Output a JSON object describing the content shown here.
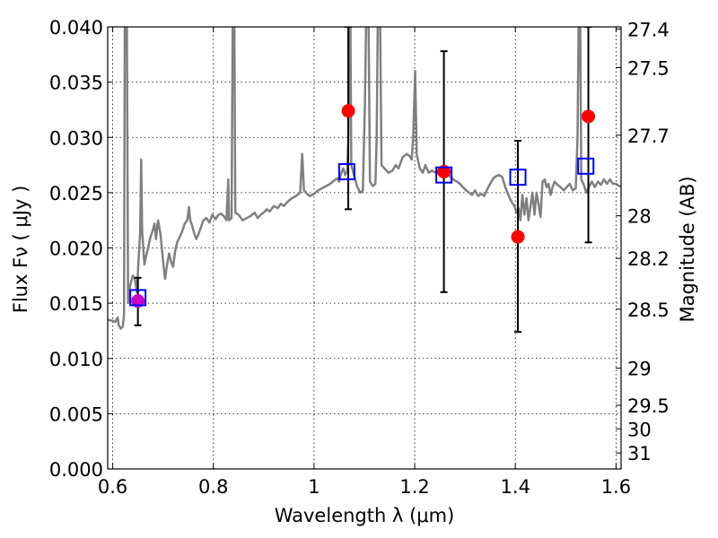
{
  "chart_data": {
    "type": "scatter",
    "xlabel": "Wavelength  λ (μm)",
    "ylabel": "Flux  Fν  ( μJy )",
    "y2label": "Magnitude (AB)",
    "xlim": [
      0.59,
      1.61
    ],
    "ylim": [
      0.0,
      0.04
    ],
    "grid": true,
    "x_ticks": [
      "0.6",
      "0.8",
      "1",
      "1.2",
      "1.4",
      "1.6"
    ],
    "y_ticks": [
      "0.000",
      "0.005",
      "0.010",
      "0.015",
      "0.020",
      "0.025",
      "0.030",
      "0.035",
      "0.040"
    ],
    "y2_ticks": [
      "27.4",
      "27.5",
      "27.7",
      "28",
      "28.2",
      "28.5",
      "29",
      "29.5",
      "30",
      "31"
    ],
    "series": [
      {
        "kind": "spectrum",
        "color": "#808080",
        "points": [
          [
            0.59,
            0.0135
          ],
          [
            0.6,
            0.0134
          ],
          [
            0.605,
            0.0133
          ],
          [
            0.61,
            0.0137
          ],
          [
            0.612,
            0.013
          ],
          [
            0.616,
            0.0127
          ],
          [
            0.62,
            0.0129
          ],
          [
            0.6225,
            0.014
          ],
          [
            0.624,
            0.042
          ],
          [
            0.628,
            0.042
          ],
          [
            0.6305,
            0.015
          ],
          [
            0.634,
            0.0165
          ],
          [
            0.64,
            0.0175
          ],
          [
            0.644,
            0.0172
          ],
          [
            0.648,
            0.016
          ],
          [
            0.652,
            0.0195
          ],
          [
            0.6545,
            0.0215
          ],
          [
            0.6565,
            0.028
          ],
          [
            0.6585,
            0.0215
          ],
          [
            0.663,
            0.0185
          ],
          [
            0.666,
            0.0192
          ],
          [
            0.67,
            0.02
          ],
          [
            0.675,
            0.021
          ],
          [
            0.679,
            0.0215
          ],
          [
            0.683,
            0.0222
          ],
          [
            0.686,
            0.0208
          ],
          [
            0.69,
            0.0225
          ],
          [
            0.695,
            0.0212
          ],
          [
            0.7,
            0.0188
          ],
          [
            0.704,
            0.0172
          ],
          [
            0.708,
            0.0185
          ],
          [
            0.712,
            0.0195
          ],
          [
            0.716,
            0.0187
          ],
          [
            0.72,
            0.0183
          ],
          [
            0.724,
            0.0197
          ],
          [
            0.728,
            0.0205
          ],
          [
            0.733,
            0.021
          ],
          [
            0.738,
            0.0215
          ],
          [
            0.743,
            0.0222
          ],
          [
            0.748,
            0.0225
          ],
          [
            0.7515,
            0.0237
          ],
          [
            0.754,
            0.0225
          ],
          [
            0.758,
            0.022
          ],
          [
            0.762,
            0.0213
          ],
          [
            0.766,
            0.0208
          ],
          [
            0.77,
            0.0212
          ],
          [
            0.775,
            0.0218
          ],
          [
            0.78,
            0.0225
          ],
          [
            0.786,
            0.0227
          ],
          [
            0.792,
            0.0223
          ],
          [
            0.798,
            0.023
          ],
          [
            0.804,
            0.0226
          ],
          [
            0.81,
            0.023
          ],
          [
            0.816,
            0.0231
          ],
          [
            0.822,
            0.0228
          ],
          [
            0.826,
            0.0225
          ],
          [
            0.8295,
            0.0262
          ],
          [
            0.831,
            0.0225
          ],
          [
            0.836,
            0.0227
          ],
          [
            0.8385,
            0.042
          ],
          [
            0.8415,
            0.042
          ],
          [
            0.8435,
            0.0232
          ],
          [
            0.85,
            0.023
          ],
          [
            0.858,
            0.0225
          ],
          [
            0.866,
            0.0227
          ],
          [
            0.874,
            0.0229
          ],
          [
            0.882,
            0.0232
          ],
          [
            0.888,
            0.0227
          ],
          [
            0.894,
            0.023
          ],
          [
            0.9,
            0.0232
          ],
          [
            0.906,
            0.0235
          ],
          [
            0.912,
            0.0233
          ],
          [
            0.92,
            0.0238
          ],
          [
            0.928,
            0.0236
          ],
          [
            0.934,
            0.024
          ],
          [
            0.94,
            0.0238
          ],
          [
            0.948,
            0.0242
          ],
          [
            0.956,
            0.0245
          ],
          [
            0.964,
            0.0247
          ],
          [
            0.9725,
            0.025
          ],
          [
            0.9765,
            0.0285
          ],
          [
            0.98,
            0.0252
          ],
          [
            0.986,
            0.0249
          ],
          [
            0.992,
            0.0247
          ],
          [
            1.0,
            0.0249
          ],
          [
            1.008,
            0.0252
          ],
          [
            1.016,
            0.0254
          ],
          [
            1.024,
            0.0256
          ],
          [
            1.032,
            0.0258
          ],
          [
            1.04,
            0.0261
          ],
          [
            1.046,
            0.0263
          ],
          [
            1.05,
            0.026
          ],
          [
            1.054,
            0.0268
          ],
          [
            1.058,
            0.0272
          ],
          [
            1.062,
            0.0266
          ],
          [
            1.066,
            0.027
          ],
          [
            1.068,
            0.03
          ],
          [
            1.07,
            0.042
          ],
          [
            1.072,
            0.042
          ],
          [
            1.074,
            0.0275
          ],
          [
            1.08,
            0.0265
          ],
          [
            1.086,
            0.0255
          ],
          [
            1.092,
            0.025
          ],
          [
            1.097,
            0.0252
          ],
          [
            1.101,
            0.033
          ],
          [
            1.104,
            0.042
          ],
          [
            1.108,
            0.042
          ],
          [
            1.111,
            0.026
          ],
          [
            1.117,
            0.0256
          ],
          [
            1.122,
            0.0258
          ],
          [
            1.1245,
            0.03
          ],
          [
            1.127,
            0.042
          ],
          [
            1.131,
            0.042
          ],
          [
            1.134,
            0.0275
          ],
          [
            1.14,
            0.0272
          ],
          [
            1.148,
            0.0268
          ],
          [
            1.156,
            0.027
          ],
          [
            1.162,
            0.0275
          ],
          [
            1.168,
            0.0272
          ],
          [
            1.176,
            0.0282
          ],
          [
            1.184,
            0.0285
          ],
          [
            1.19,
            0.0283
          ],
          [
            1.194,
            0.028
          ],
          [
            1.197,
            0.03
          ],
          [
            1.201,
            0.036
          ],
          [
            1.204,
            0.0285
          ],
          [
            1.21,
            0.0272
          ],
          [
            1.216,
            0.0268
          ],
          [
            1.221,
            0.0275
          ],
          [
            1.228,
            0.0268
          ],
          [
            1.234,
            0.027
          ],
          [
            1.242,
            0.0268
          ],
          [
            1.25,
            0.0271
          ],
          [
            1.258,
            0.0266
          ],
          [
            1.264,
            0.0268
          ],
          [
            1.27,
            0.0265
          ],
          [
            1.2745,
            0.0263
          ],
          [
            1.2795,
            0.0261
          ],
          [
            1.2845,
            0.026
          ],
          [
            1.29,
            0.0258
          ],
          [
            1.296,
            0.0255
          ],
          [
            1.302,
            0.0252
          ],
          [
            1.308,
            0.025
          ],
          [
            1.314,
            0.0248
          ],
          [
            1.32,
            0.0252
          ],
          [
            1.326,
            0.0247
          ],
          [
            1.332,
            0.0249
          ],
          [
            1.338,
            0.0247
          ],
          [
            1.344,
            0.0253
          ],
          [
            1.35,
            0.0258
          ],
          [
            1.356,
            0.0263
          ],
          [
            1.362,
            0.0265
          ],
          [
            1.368,
            0.0266
          ],
          [
            1.374,
            0.0264
          ],
          [
            1.38,
            0.0255
          ],
          [
            1.386,
            0.0248
          ],
          [
            1.392,
            0.0242
          ],
          [
            1.398,
            0.0238
          ],
          [
            1.402,
            0.0232
          ],
          [
            1.406,
            0.0236
          ],
          [
            1.41,
            0.0225
          ],
          [
            1.414,
            0.0248
          ],
          [
            1.418,
            0.023
          ],
          [
            1.422,
            0.0245
          ],
          [
            1.426,
            0.0225
          ],
          [
            1.43,
            0.0238
          ],
          [
            1.434,
            0.025
          ],
          [
            1.438,
            0.023
          ],
          [
            1.442,
            0.025
          ],
          [
            1.446,
            0.024
          ],
          [
            1.45,
            0.0228
          ],
          [
            1.454,
            0.026
          ],
          [
            1.458,
            0.0262
          ],
          [
            1.462,
            0.0255
          ],
          [
            1.466,
            0.0258
          ],
          [
            1.47,
            0.0248
          ],
          [
            1.474,
            0.0255
          ],
          [
            1.478,
            0.026
          ],
          [
            1.484,
            0.0257
          ],
          [
            1.49,
            0.0255
          ],
          [
            1.496,
            0.0252
          ],
          [
            1.502,
            0.0255
          ],
          [
            1.508,
            0.0258
          ],
          [
            1.514,
            0.0252
          ],
          [
            1.52,
            0.0254
          ],
          [
            1.5235,
            0.03
          ],
          [
            1.526,
            0.042
          ],
          [
            1.5285,
            0.042
          ],
          [
            1.531,
            0.0262
          ],
          [
            1.536,
            0.0257
          ],
          [
            1.541,
            0.025
          ],
          [
            1.546,
            0.0255
          ],
          [
            1.552,
            0.026
          ],
          [
            1.558,
            0.0255
          ],
          [
            1.564,
            0.026
          ],
          [
            1.57,
            0.0257
          ],
          [
            1.576,
            0.0262
          ],
          [
            1.582,
            0.0258
          ],
          [
            1.588,
            0.0262
          ],
          [
            1.594,
            0.0258
          ],
          [
            1.6,
            0.0258
          ],
          [
            1.606,
            0.0256
          ],
          [
            1.61,
            0.0256
          ]
        ]
      },
      {
        "kind": "model-photometry",
        "marker": "open-square",
        "color": "#0000ff",
        "x": [
          0.65,
          1.065,
          1.258,
          1.405,
          1.54
        ],
        "y": [
          0.0155,
          0.0269,
          0.0266,
          0.0264,
          0.0274
        ]
      },
      {
        "kind": "observed-photometry",
        "marker": "filled-circle",
        "color": "#ff0000",
        "overlap_color": "#c800c8",
        "x": [
          0.65,
          1.068,
          1.258,
          1.405,
          1.545
        ],
        "y": [
          0.0152,
          0.0324,
          0.0269,
          0.021,
          0.0319
        ],
        "yerr_low": [
          0.0022,
          0.0089,
          0.0109,
          0.0086,
          0.0114
        ],
        "yerr_high": [
          0.0021,
          0.0076,
          0.0109,
          0.0087,
          0.0081
        ]
      }
    ]
  }
}
